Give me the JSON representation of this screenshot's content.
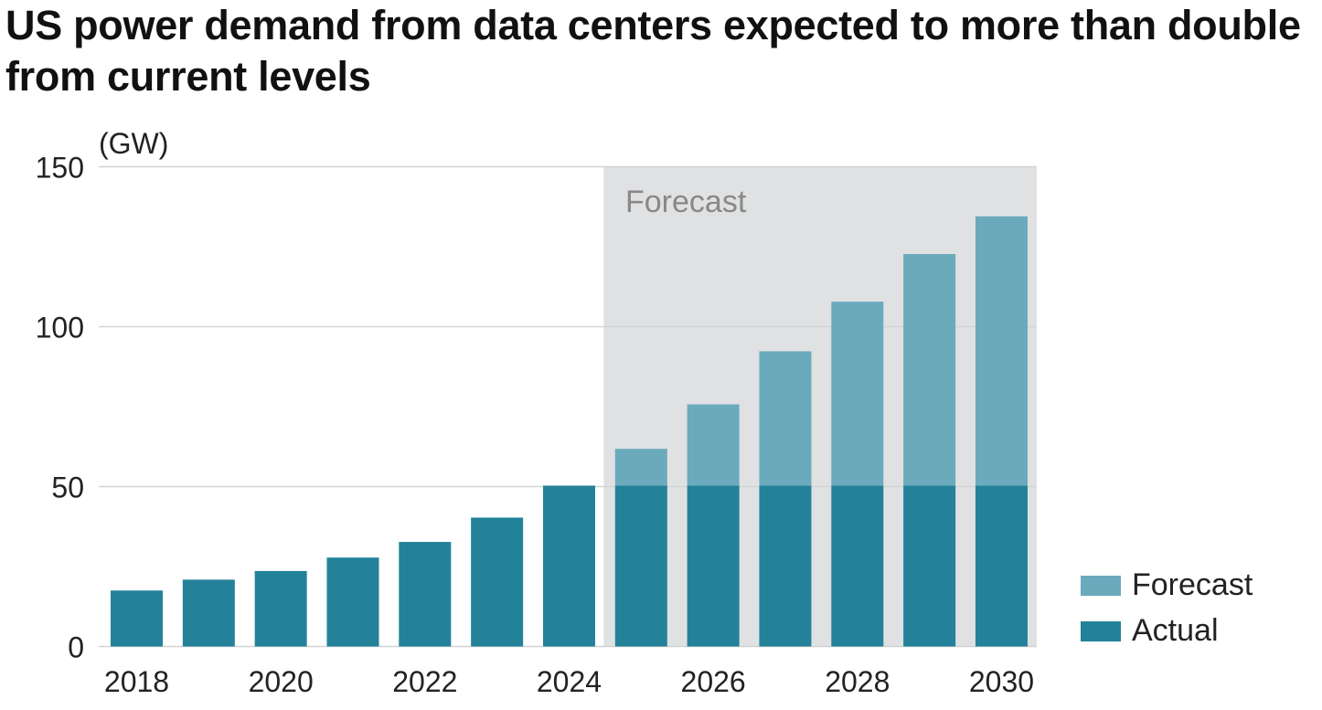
{
  "chart_data": {
    "type": "bar",
    "title": "US power demand from data centers expected to more than double from current levels",
    "ylabel": "(GW)",
    "xlabel": "",
    "ylim": [
      0,
      150
    ],
    "yticks": [
      "0",
      "50",
      "100",
      "150"
    ],
    "ytick_values": [
      0,
      50,
      100,
      150
    ],
    "grid": true,
    "categories": [
      2018,
      2019,
      2020,
      2021,
      2022,
      2023,
      2024,
      2025,
      2026,
      2027,
      2028,
      2029,
      2030
    ],
    "xtick_labels": [
      "2018",
      "2020",
      "2022",
      "2024",
      "2026",
      "2028",
      "2030"
    ],
    "series": [
      {
        "name": "Actual",
        "color": "#23829a",
        "values": [
          17.5,
          20.9,
          23.6,
          27.8,
          32.7,
          40.3,
          50.3,
          50.3,
          50.3,
          50.3,
          50.3,
          50.3,
          50.3
        ]
      },
      {
        "name": "Forecast",
        "color": "#6baabc",
        "values": [
          0,
          0,
          0,
          0,
          0,
          0,
          0,
          11.5,
          25.4,
          42.0,
          57.5,
          72.4,
          84.2
        ]
      }
    ],
    "totals": [
      17.5,
      20.9,
      23.6,
      27.8,
      32.7,
      40.3,
      50.3,
      61.8,
      75.7,
      92.3,
      107.8,
      122.7,
      134.5
    ],
    "forecast_region": {
      "label": "Forecast",
      "from_year": 2025,
      "to_year": 2030,
      "color": "#e0e1e3"
    },
    "legend": {
      "placement": "bottom-right",
      "entries": [
        "Forecast",
        "Actual"
      ]
    }
  }
}
